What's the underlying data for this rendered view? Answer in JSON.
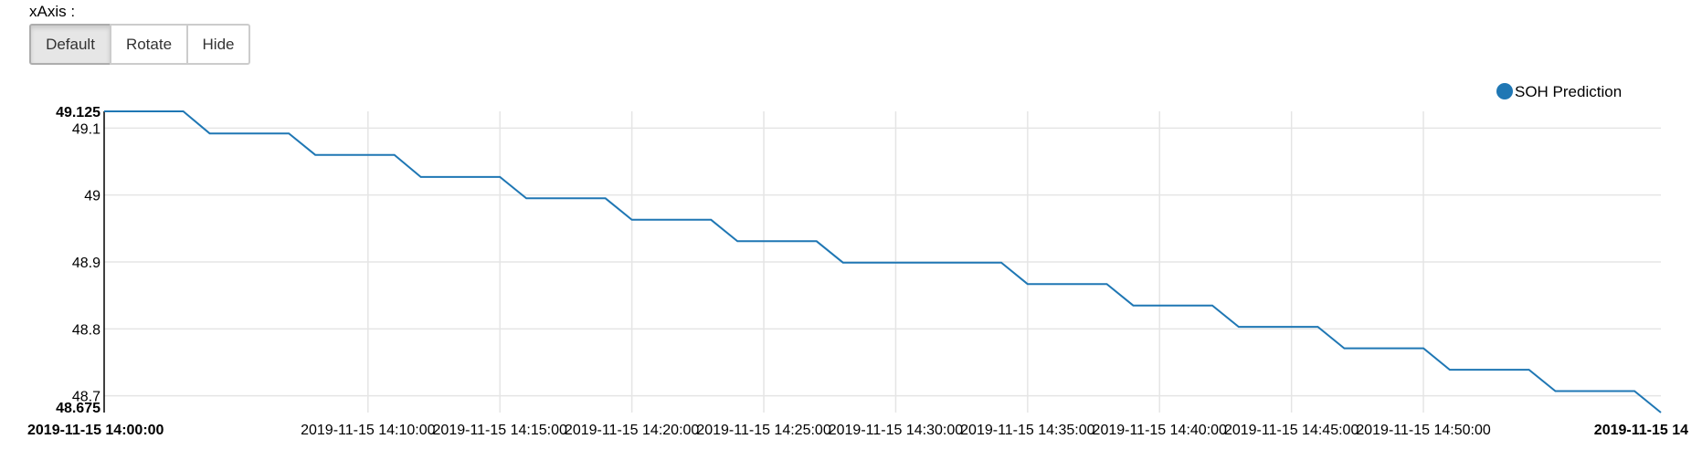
{
  "controls": {
    "label": "xAxis :",
    "buttons": [
      {
        "id": "default",
        "label": "Default",
        "active": true
      },
      {
        "id": "rotate",
        "label": "Rotate",
        "active": false
      },
      {
        "id": "hide",
        "label": "Hide",
        "active": false
      }
    ]
  },
  "chart_data": {
    "type": "line",
    "series": [
      {
        "name": "SOH Prediction",
        "color": "#1f77b4",
        "x": [
          "14:00",
          "14:03",
          "14:04",
          "14:07",
          "14:08",
          "14:11",
          "14:12",
          "14:15",
          "14:16",
          "14:19",
          "14:20",
          "14:23",
          "14:24",
          "14:27",
          "14:28",
          "14:34",
          "14:35",
          "14:38",
          "14:39",
          "14:42",
          "14:43",
          "14:46",
          "14:47",
          "14:50",
          "14:51",
          "14:54",
          "14:55",
          "14:58",
          "14:59"
        ],
        "values": [
          49.125,
          49.125,
          49.092,
          49.092,
          49.06,
          49.06,
          49.027,
          49.027,
          48.995,
          48.995,
          48.963,
          48.963,
          48.931,
          48.931,
          48.899,
          48.899,
          48.867,
          48.867,
          48.835,
          48.835,
          48.803,
          48.803,
          48.771,
          48.771,
          48.739,
          48.739,
          48.707,
          48.707,
          48.675
        ]
      }
    ],
    "ylim": [
      48.675,
      49.125
    ],
    "xlim": [
      "14:00",
      "14:59"
    ],
    "y_ticks": [
      {
        "value": 48.675,
        "label": "48.675",
        "bold": true
      },
      {
        "value": 48.7,
        "label": "48.7",
        "bold": false
      },
      {
        "value": 48.8,
        "label": "48.8",
        "bold": false
      },
      {
        "value": 48.9,
        "label": "48.9",
        "bold": false
      },
      {
        "value": 49.0,
        "label": "49",
        "bold": false
      },
      {
        "value": 49.1,
        "label": "49.1",
        "bold": false
      },
      {
        "value": 49.125,
        "label": "49.125",
        "bold": true
      }
    ],
    "x_ticks": [
      {
        "value": "14:00",
        "label": "2019-11-15 14:00:00",
        "bold": true,
        "anchor": "start",
        "grid": false
      },
      {
        "value": "14:10",
        "label": "2019-11-15 14:10:00",
        "bold": false,
        "anchor": "middle",
        "grid": true
      },
      {
        "value": "14:15",
        "label": "2019-11-15 14:15:00",
        "bold": false,
        "anchor": "middle",
        "grid": true
      },
      {
        "value": "14:20",
        "label": "2019-11-15 14:20:00",
        "bold": false,
        "anchor": "middle",
        "grid": true
      },
      {
        "value": "14:25",
        "label": "2019-11-15 14:25:00",
        "bold": false,
        "anchor": "middle",
        "grid": true
      },
      {
        "value": "14:30",
        "label": "2019-11-15 14:30:00",
        "bold": false,
        "anchor": "middle",
        "grid": true
      },
      {
        "value": "14:35",
        "label": "2019-11-15 14:35:00",
        "bold": false,
        "anchor": "middle",
        "grid": true
      },
      {
        "value": "14:40",
        "label": "2019-11-15 14:40:00",
        "bold": false,
        "anchor": "middle",
        "grid": true
      },
      {
        "value": "14:45",
        "label": "2019-11-15 14:45:00",
        "bold": false,
        "anchor": "middle",
        "grid": true
      },
      {
        "value": "14:50",
        "label": "2019-11-15 14:50:00",
        "bold": false,
        "anchor": "middle",
        "grid": true
      },
      {
        "value": "14:59",
        "label": "2019-11-15 14",
        "bold": true,
        "anchor": "end",
        "grid": false
      }
    ],
    "grid": true,
    "legend": {
      "position": "top-right"
    }
  }
}
